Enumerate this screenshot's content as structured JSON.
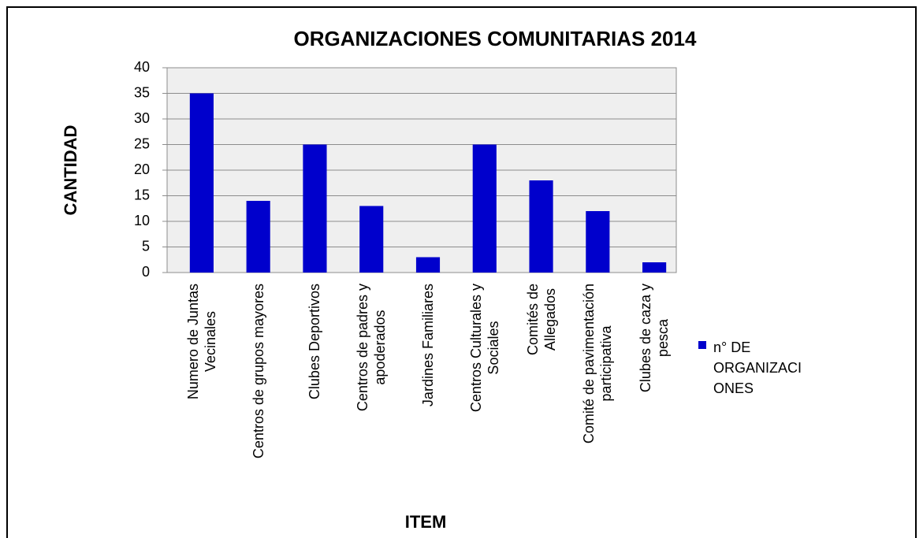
{
  "chart_data": {
    "type": "bar",
    "title": "ORGANIZACIONES COMUNITARIAS 2014",
    "x_label": "ITEM",
    "y_label": "CANTIDAD",
    "categories": [
      "Numero de Juntas\nVecinales",
      "Centros de grupos mayores",
      "Clubes Deportivos",
      "Centros de padres y\napoderados",
      "Jardines Familiares",
      "Centros Culturales y\nSociales",
      "Comités de\nAllegados",
      "Comité de pavimentación\nparticipativa",
      "Clubes de caza y\npesca"
    ],
    "series": [
      {
        "name": "n° DE ORGANIZACIONES",
        "color": "#0000cc",
        "values": [
          35,
          14,
          25,
          13,
          3,
          25,
          18,
          12,
          2
        ]
      }
    ],
    "ylim": [
      0,
      40
    ],
    "yticks": [
      0,
      5,
      10,
      15,
      20,
      25,
      30,
      35,
      40
    ],
    "grid": true,
    "legend": "right"
  }
}
